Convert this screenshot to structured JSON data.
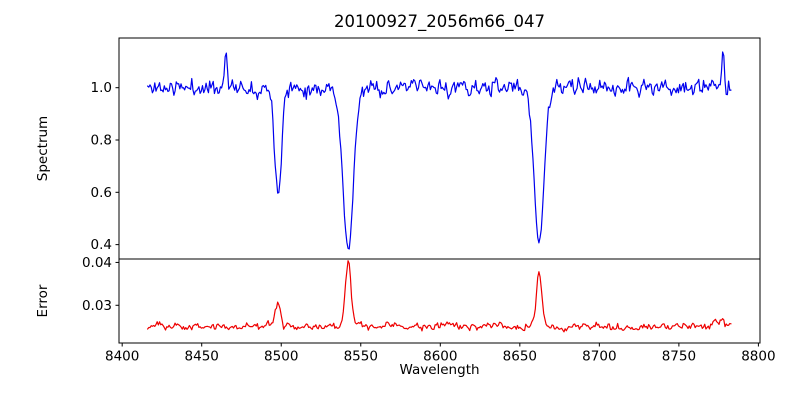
{
  "title": "20100927_2056m66_047",
  "chart_data": {
    "type": "line",
    "title": "20100927_2056m66_047",
    "xlabel": "Wavelength",
    "grid": false,
    "legend": null,
    "xlim": [
      8398,
      8801
    ],
    "x_ticks": [
      {
        "v": 8400,
        "label": "8400"
      },
      {
        "v": 8450,
        "label": "8450"
      },
      {
        "v": 8500,
        "label": "8500"
      },
      {
        "v": 8550,
        "label": "8550"
      },
      {
        "v": 8600,
        "label": "8600"
      },
      {
        "v": 8650,
        "label": "8650"
      },
      {
        "v": 8700,
        "label": "8700"
      },
      {
        "v": 8750,
        "label": "8750"
      },
      {
        "v": 8800,
        "label": "8800"
      }
    ],
    "x_sampling": {
      "start": 8416,
      "end": 8783,
      "step": 0.75
    },
    "panels": [
      {
        "name": "spectrum",
        "ylabel": "Spectrum",
        "color": "#0000ee",
        "ylim": [
          0.345,
          1.19
        ],
        "y_ticks": [
          {
            "v": 0.4,
            "label": "0.4"
          },
          {
            "v": 0.6,
            "label": "0.6"
          },
          {
            "v": 0.8,
            "label": "0.8"
          },
          {
            "v": 1.0,
            "label": "1.0"
          }
        ],
        "baseline": 1.0,
        "noise_std": 0.016,
        "noise_ar": 0.35,
        "noise_follows_signal": true,
        "seed": 11,
        "features": [
          {
            "center": 8498.0,
            "sigma": 2.1,
            "amp": -0.4
          },
          {
            "center": 8542.1,
            "sigma": 3.3,
            "amp": -0.62
          },
          {
            "center": 8662.1,
            "sigma": 3.1,
            "amp": -0.59
          },
          {
            "center": 8465.0,
            "sigma": 0.8,
            "amp": 0.16
          },
          {
            "center": 8778.0,
            "sigma": 0.8,
            "amp": 0.15
          }
        ]
      },
      {
        "name": "error",
        "ylabel": "Error",
        "color": "#ee0000",
        "ylim": [
          0.0212,
          0.0408
        ],
        "y_ticks": [
          {
            "v": 0.03,
            "label": "0.03"
          },
          {
            "v": 0.04,
            "label": "0.04"
          }
        ],
        "baseline": 0.0251,
        "noise_std": 0.00045,
        "noise_ar": 0.45,
        "noise_follows_signal": false,
        "seed": 23,
        "features": [
          {
            "center": 8498.0,
            "sigma": 1.6,
            "amp": 0.0057
          },
          {
            "center": 8542.1,
            "sigma": 1.8,
            "amp": 0.0146
          },
          {
            "center": 8662.1,
            "sigma": 1.7,
            "amp": 0.0126
          },
          {
            "center": 8776.0,
            "sigma": 4.0,
            "amp": 0.0012
          }
        ]
      }
    ]
  }
}
